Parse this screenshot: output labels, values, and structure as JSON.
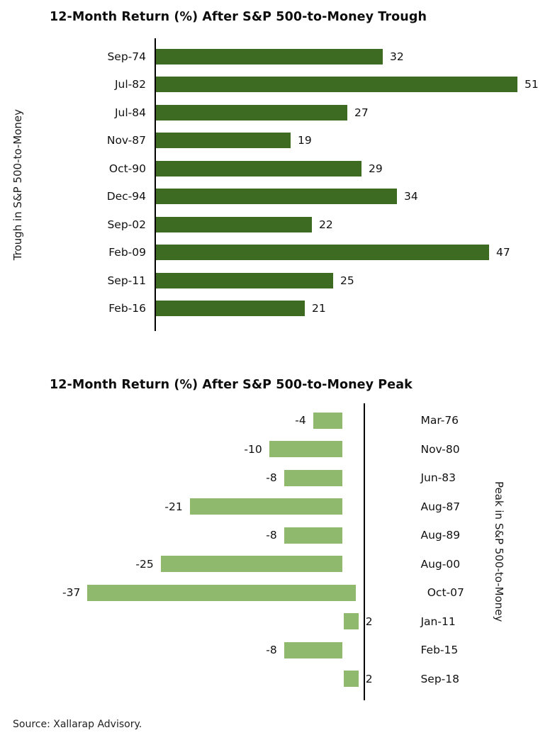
{
  "page": {
    "background": "#FFFFFF",
    "source_note": "Source: Xallarap Advisory."
  },
  "chart_data": [
    {
      "type": "bar",
      "orientation": "horizontal",
      "title": "12-Month Return (%) After S&P 500-to-Money Trough",
      "axis_label": "Trough in S&P 500-to-Money",
      "axis_label_side": "left",
      "categories": [
        "Sep-74",
        "Jul-82",
        "Jul-84",
        "Nov-87",
        "Oct-90",
        "Dec-94",
        "Sep-02",
        "Feb-09",
        "Sep-11",
        "Feb-16"
      ],
      "values": [
        32,
        51,
        27,
        19,
        29,
        34,
        22,
        47,
        25,
        21
      ],
      "bar_color": "#3E6B22",
      "xlim": [
        0,
        55
      ],
      "data_labels": true,
      "grid": false,
      "legend": false
    },
    {
      "type": "bar",
      "orientation": "horizontal",
      "title": "12-Month Return (%) After S&P 500-to-Money Peak",
      "axis_label": "Peak in S&P 500-to-Money",
      "axis_label_side": "right",
      "categories": [
        "Mar-76",
        "Nov-80",
        "Jun-83",
        "Aug-87",
        "Aug-89",
        "Aug-00",
        "Oct-07",
        "Jan-11",
        "Feb-15",
        "Sep-18"
      ],
      "values": [
        -4,
        -10,
        -8,
        -21,
        -8,
        -25,
        -37,
        2,
        -8,
        2
      ],
      "bar_color": "#8FBA6E",
      "xlim": [
        -40,
        5
      ],
      "data_labels": true,
      "grid": false,
      "legend": false
    }
  ]
}
